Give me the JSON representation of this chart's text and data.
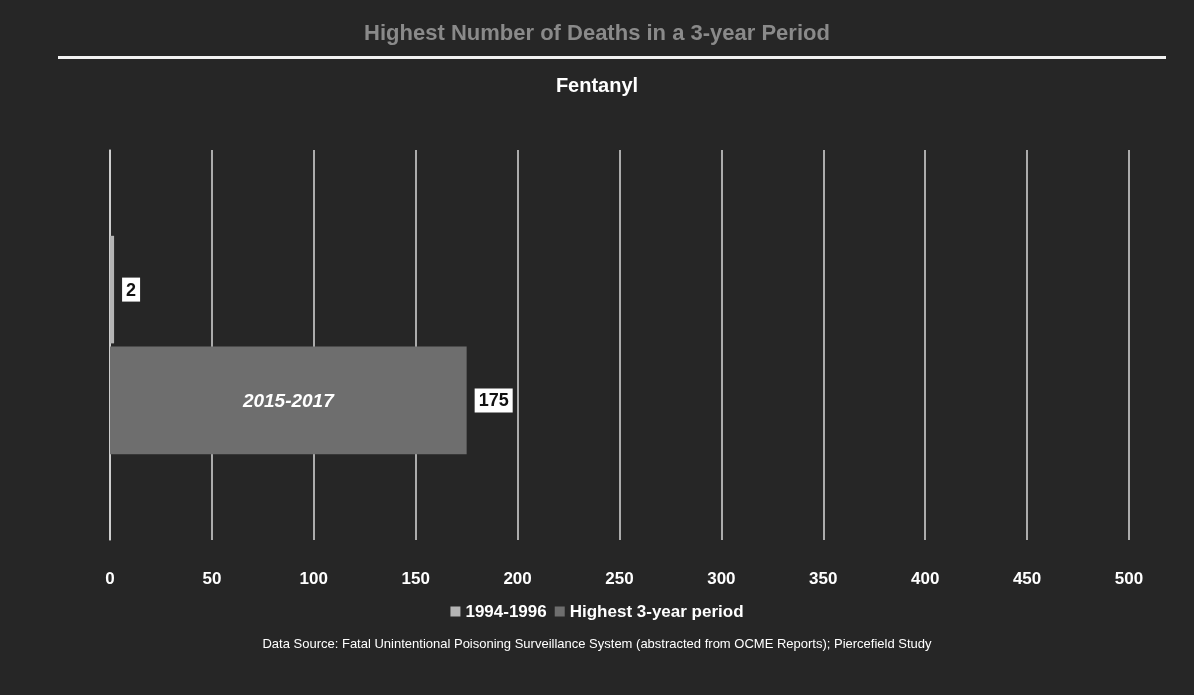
{
  "chart_data": {
    "type": "bar",
    "orientation": "horizontal",
    "title": "Highest Number of Deaths in a 3-year Period",
    "subtitle": "Fentanyl",
    "categories": [
      null
    ],
    "series": [
      {
        "name": "1994-1996",
        "color": "#b4b4b4",
        "values": [
          2
        ]
      },
      {
        "name": "Highest 3-year period",
        "color": "#6e6e6e",
        "values": [
          175
        ]
      }
    ],
    "xlim": [
      0,
      500
    ],
    "xticks": [
      0,
      50,
      100,
      150,
      200,
      250,
      300,
      350,
      400,
      450,
      500
    ],
    "grid": "x",
    "legend": "bottom",
    "data_labels": true,
    "annotations": [
      "2015-2017",
      "Data Source: Fatal Unintentional Poisoning Surveillance System (abstracted from OCME Reports); Piercefield Study"
    ]
  }
}
